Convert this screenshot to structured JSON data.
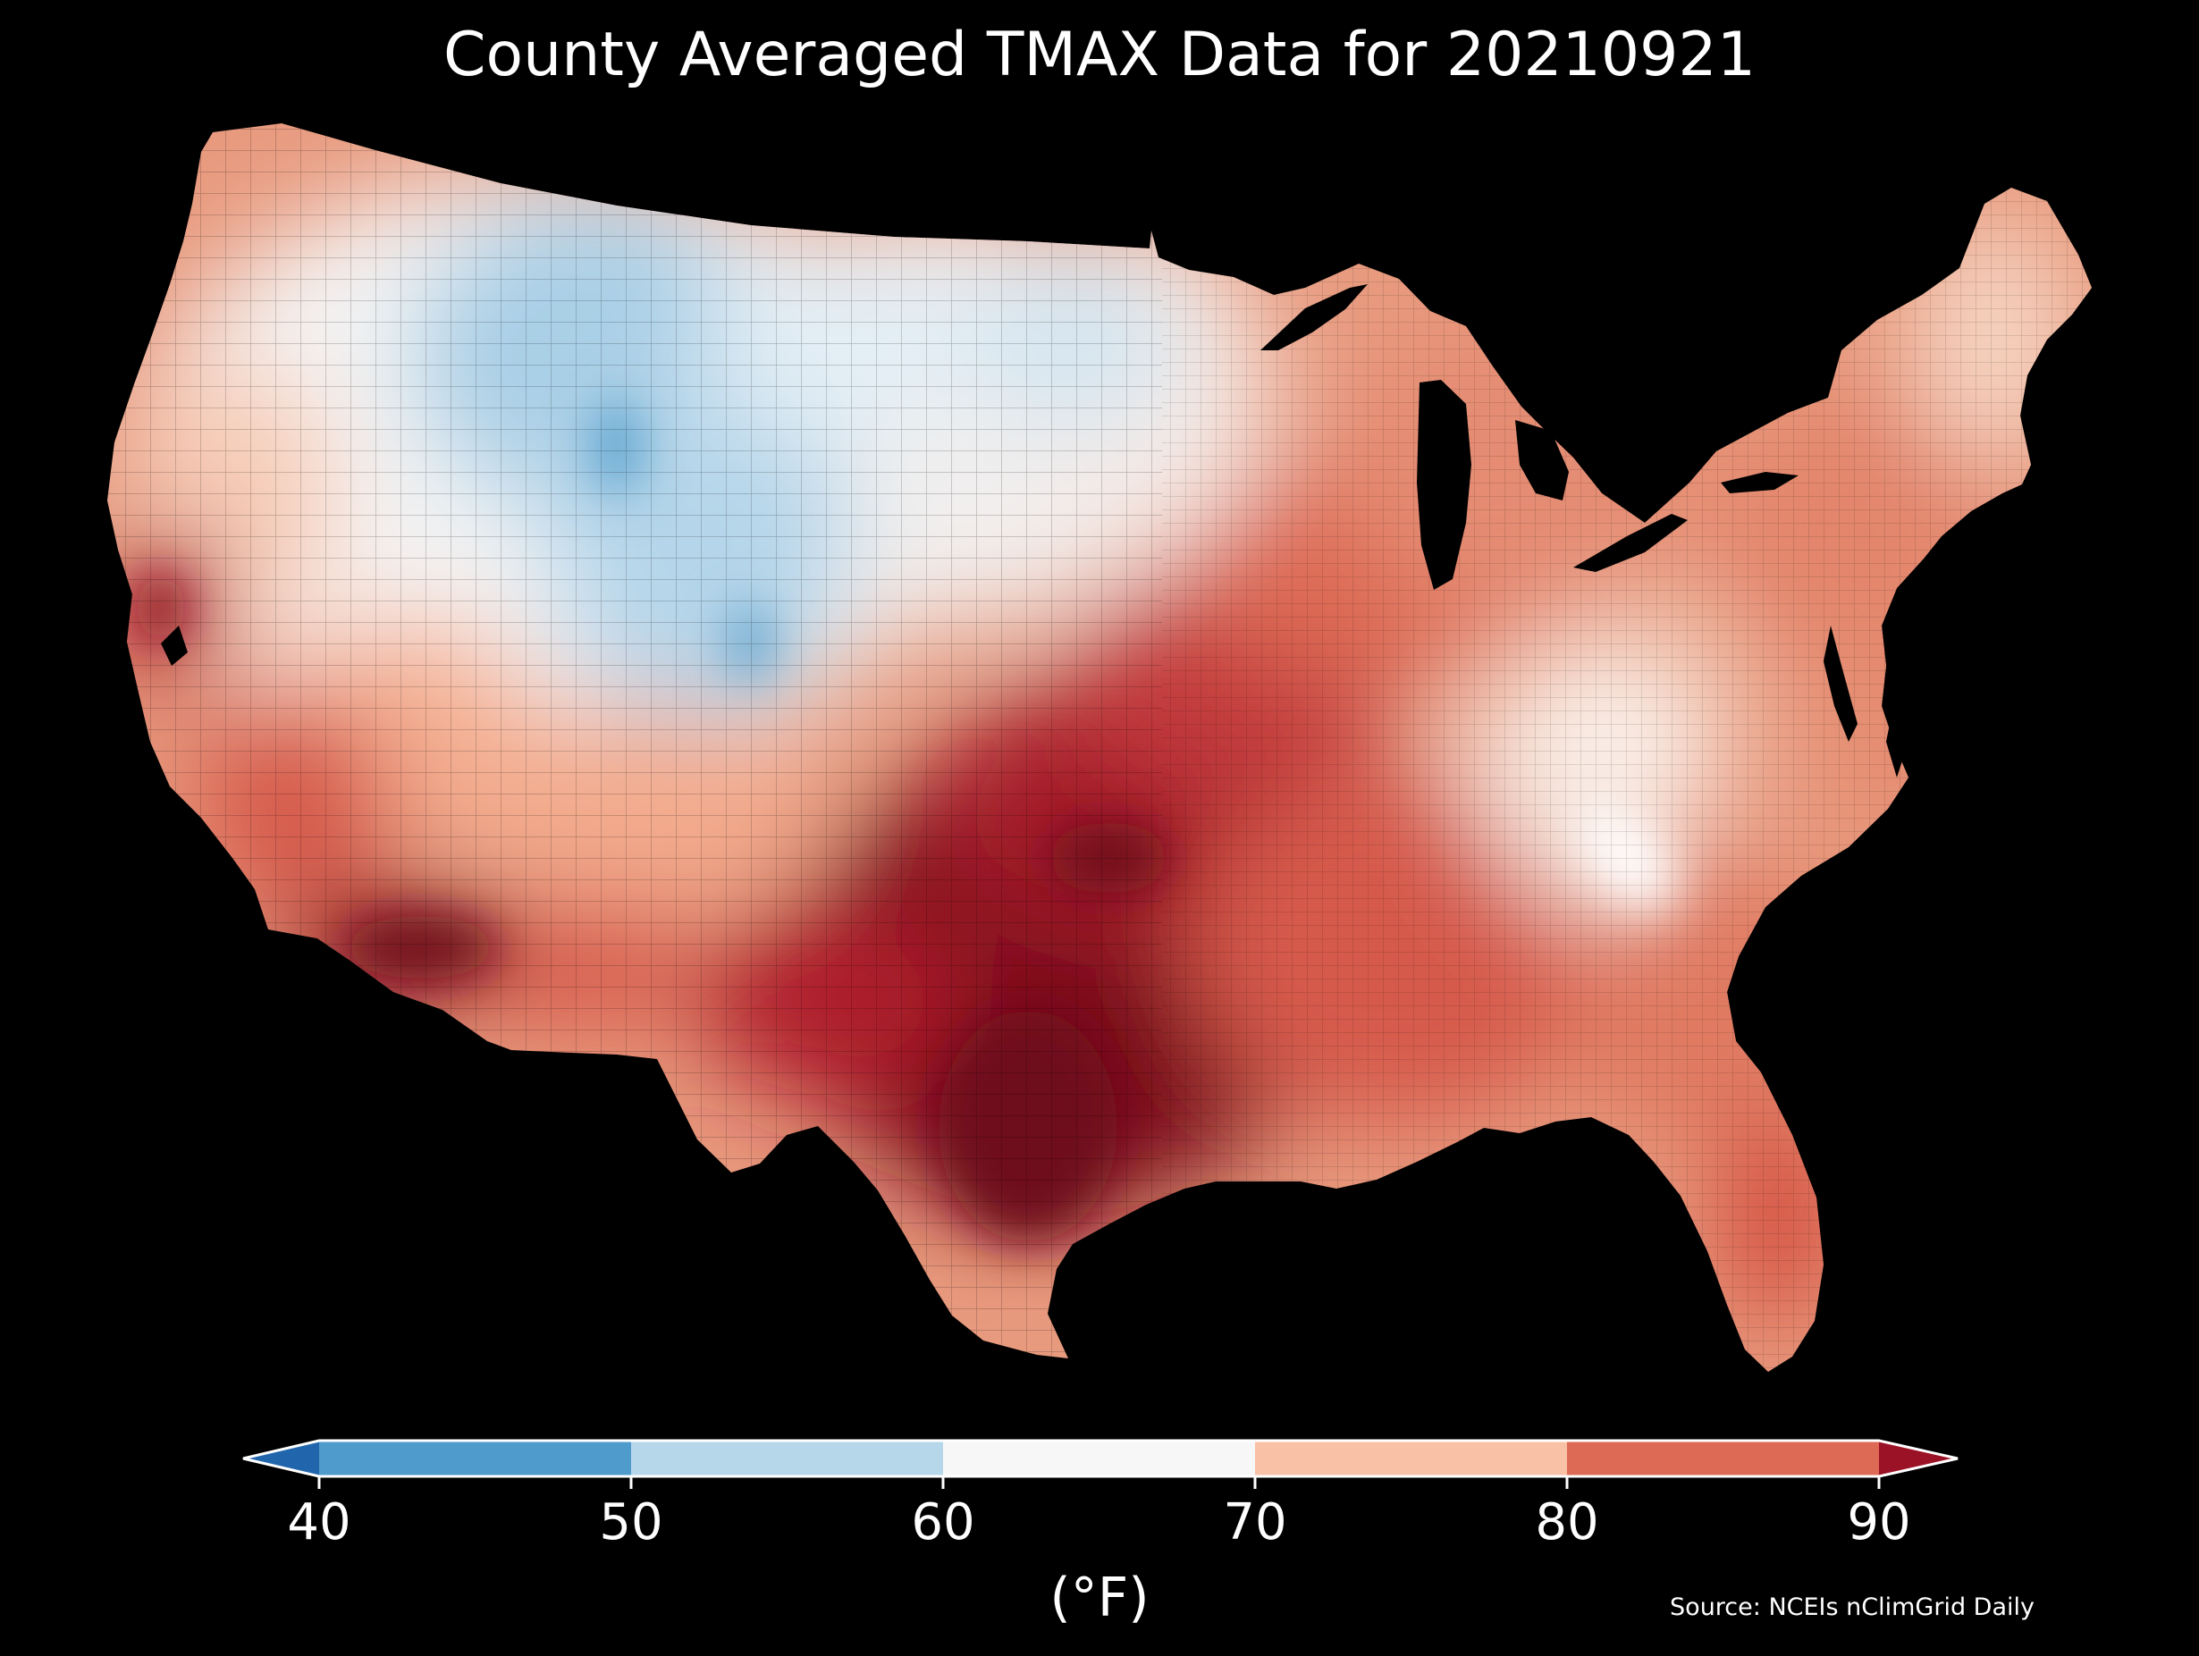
{
  "title": "County Averaged TMAX Data for 20210921",
  "source": "Source: NCEIs nClimGrid Daily",
  "legend": {
    "unit": "(°F)",
    "ticks": [
      "40",
      "50",
      "60",
      "70",
      "80",
      "90"
    ],
    "extend": "both",
    "bins": [
      {
        "range": "<40",
        "color": "#2166ac"
      },
      {
        "range": "40-50",
        "color": "#4f9bcb"
      },
      {
        "range": "50-60",
        "color": "#b6d7ea"
      },
      {
        "range": "60-70",
        "color": "#f7f7f7"
      },
      {
        "range": "70-80",
        "color": "#f9c1a5"
      },
      {
        "range": "80-90",
        "color": "#dd6a55"
      },
      {
        "range": ">90",
        "color": "#9b1226"
      }
    ]
  },
  "map": {
    "region": "Contiguous United States",
    "units": "counties",
    "colors": {
      "land_boundary": "#000000",
      "coldest": "#4f9bcb",
      "cool": "#b6d7ea",
      "mild": "#f7f7f7",
      "warm": "#f9c1a5",
      "hot": "#dd6a55",
      "hottest": "#7a0c1c"
    }
  }
}
